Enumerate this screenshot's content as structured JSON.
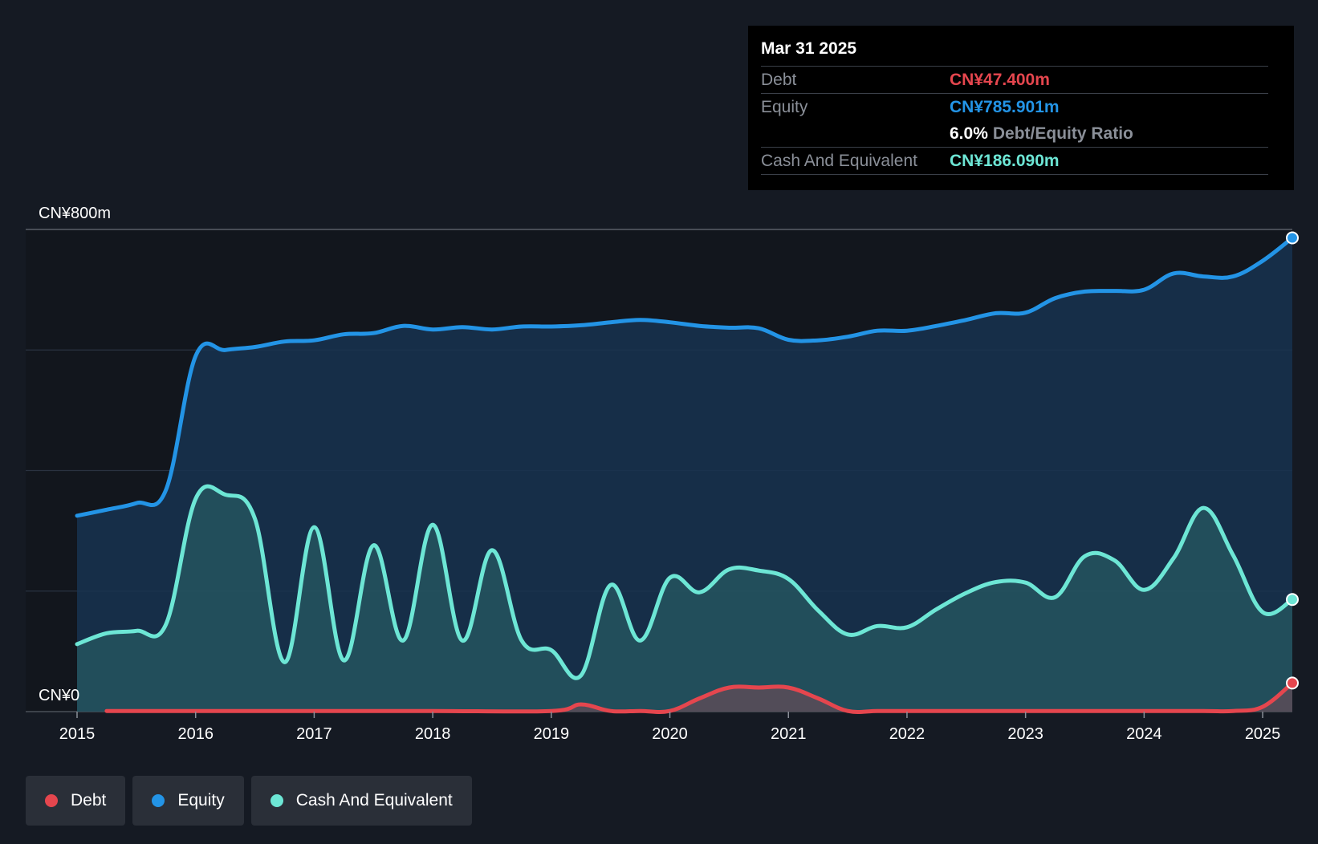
{
  "colors": {
    "debt": "#e5464e",
    "equity": "#2394e6",
    "cash": "#6de6d5",
    "background": "#151a23"
  },
  "tooltip": {
    "date": "Mar 31 2025",
    "debt_label": "Debt",
    "debt_value": "CN¥47.400m",
    "equity_label": "Equity",
    "equity_value": "CN¥785.901m",
    "ratio_value": "6.0%",
    "ratio_label": "Debt/Equity Ratio",
    "cash_label": "Cash And Equivalent",
    "cash_value": "CN¥186.090m"
  },
  "legend": [
    {
      "key": "debt",
      "label": "Debt"
    },
    {
      "key": "equity",
      "label": "Equity"
    },
    {
      "key": "cash",
      "label": "Cash And Equivalent"
    }
  ],
  "chart_data": {
    "type": "area",
    "title": "",
    "xlabel": "",
    "ylabel": "",
    "ylim": [
      0,
      800
    ],
    "xlim": [
      2015.0,
      2025.25
    ],
    "y_tick_labels": [
      {
        "value": 800,
        "label": "CN¥800m"
      },
      {
        "value": 0,
        "label": "CN¥0"
      }
    ],
    "gridlines": [
      200,
      400,
      600
    ],
    "x_ticks": [
      {
        "value": 2015,
        "label": "2015"
      },
      {
        "value": 2016,
        "label": "2016"
      },
      {
        "value": 2017,
        "label": "2017"
      },
      {
        "value": 2018,
        "label": "2018"
      },
      {
        "value": 2019,
        "label": "2019"
      },
      {
        "value": 2020,
        "label": "2020"
      },
      {
        "value": 2021,
        "label": "2021"
      },
      {
        "value": 2022,
        "label": "2022"
      },
      {
        "value": 2023,
        "label": "2023"
      },
      {
        "value": 2024,
        "label": "2024"
      },
      {
        "value": 2025,
        "label": "2025"
      }
    ],
    "series": [
      {
        "name": "Equity",
        "key": "equity",
        "x": [
          2015.0,
          2015.25,
          2015.5,
          2015.75,
          2016.0,
          2016.25,
          2016.5,
          2016.75,
          2017.0,
          2017.25,
          2017.5,
          2017.75,
          2018.0,
          2018.25,
          2018.5,
          2018.75,
          2019.0,
          2019.25,
          2019.5,
          2019.75,
          2020.0,
          2020.25,
          2020.5,
          2020.75,
          2021.0,
          2021.25,
          2021.5,
          2021.75,
          2022.0,
          2022.25,
          2022.5,
          2022.75,
          2023.0,
          2023.25,
          2023.5,
          2023.75,
          2024.0,
          2024.25,
          2024.5,
          2024.75,
          2025.0,
          2025.25
        ],
        "values": [
          325,
          335,
          346,
          368,
          590,
          600,
          605,
          614,
          616,
          626,
          628,
          640,
          634,
          638,
          634,
          639,
          639,
          641,
          646,
          650,
          646,
          640,
          637,
          636,
          617,
          616,
          622,
          632,
          632,
          640,
          650,
          661,
          662,
          686,
          697,
          698,
          700,
          727,
          722,
          722,
          748,
          786
        ]
      },
      {
        "name": "Cash And Equivalent",
        "key": "cash",
        "x": [
          2015.0,
          2015.25,
          2015.5,
          2015.75,
          2016.0,
          2016.25,
          2016.5,
          2016.75,
          2017.0,
          2017.25,
          2017.5,
          2017.75,
          2018.0,
          2018.25,
          2018.5,
          2018.75,
          2019.0,
          2019.25,
          2019.5,
          2019.75,
          2020.0,
          2020.25,
          2020.5,
          2020.75,
          2021.0,
          2021.25,
          2021.5,
          2021.75,
          2022.0,
          2022.25,
          2022.5,
          2022.75,
          2023.0,
          2023.25,
          2023.5,
          2023.75,
          2024.0,
          2024.25,
          2024.5,
          2024.75,
          2025.0,
          2025.25
        ],
        "values": [
          112,
          130,
          134,
          145,
          353,
          360,
          320,
          82,
          306,
          85,
          276,
          118,
          310,
          118,
          268,
          118,
          102,
          60,
          210,
          118,
          222,
          198,
          236,
          234,
          220,
          168,
          128,
          142,
          140,
          170,
          197,
          215,
          214,
          190,
          258,
          251,
          202,
          255,
          338,
          260,
          165,
          186
        ]
      },
      {
        "name": "Debt",
        "key": "debt",
        "x": [
          2015.25,
          2015.5,
          2016.0,
          2017.0,
          2018.0,
          2019.0,
          2019.25,
          2019.5,
          2019.75,
          2020.0,
          2020.25,
          2020.5,
          2020.75,
          2021.0,
          2021.25,
          2021.5,
          2021.75,
          2022.0,
          2023.0,
          2024.0,
          2024.5,
          2024.75,
          2025.0,
          2025.25
        ],
        "values": [
          1,
          1,
          1,
          1,
          1,
          1,
          12,
          1,
          1,
          1,
          22,
          40,
          40,
          40,
          22,
          1,
          1,
          1,
          1,
          1,
          1,
          1,
          8,
          47.4
        ]
      }
    ]
  }
}
